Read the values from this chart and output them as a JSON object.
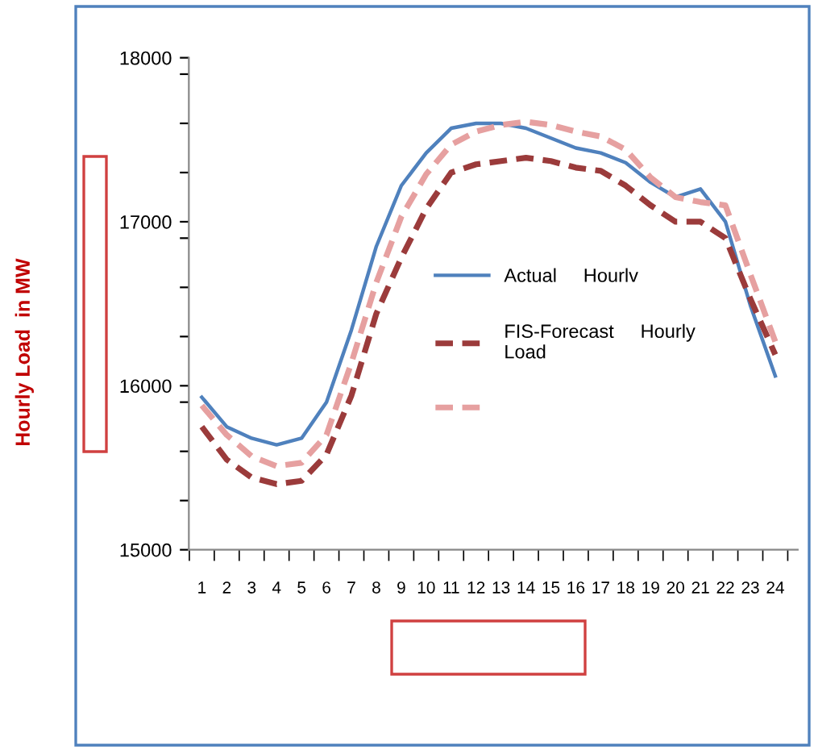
{
  "chart_data": {
    "type": "line",
    "ylabel": "Hourly Load  in MW",
    "categories": [
      "1",
      "2",
      "3",
      "4",
      "5",
      "6",
      "7",
      "8",
      "9",
      "10",
      "11",
      "12",
      "13",
      "14",
      "15",
      "16",
      "17",
      "18",
      "19",
      "20",
      "21",
      "22",
      "23",
      "24"
    ],
    "series": [
      {
        "name": "Actual     Hourlv",
        "color": "#4f81bd",
        "line_style": "solid",
        "values": [
          15930,
          15750,
          15680,
          15640,
          15680,
          15900,
          16340,
          16850,
          17220,
          17420,
          17570,
          17600,
          17600,
          17570,
          17510,
          17450,
          17420,
          17360,
          17240,
          17150,
          17200,
          17000,
          16490,
          16060
        ]
      },
      {
        "name": "FIS-Forecast     Hourly\nLoad",
        "color": "#9b3b3b",
        "line_style": "dashed",
        "values": [
          15750,
          15550,
          15440,
          15400,
          15420,
          15580,
          15940,
          16440,
          16780,
          17080,
          17300,
          17350,
          17370,
          17390,
          17370,
          17330,
          17310,
          17220,
          17100,
          17000,
          17000,
          16900,
          16530,
          16190
        ]
      },
      {
        "color": "#e6a0a0",
        "line_style": "dashed",
        "values": [
          15880,
          15700,
          15570,
          15510,
          15530,
          15700,
          16140,
          16630,
          17030,
          17290,
          17470,
          17550,
          17590,
          17610,
          17590,
          17550,
          17520,
          17440,
          17270,
          17150,
          17120,
          17100,
          16680,
          16270
        ]
      }
    ],
    "ylim": [
      15000,
      18000
    ],
    "yticks": [
      15000,
      {
        "value": 15300,
        "label": null
      },
      {
        "value": 15600,
        "label": null
      },
      {
        "value": 15900,
        "label": null
      },
      16000,
      {
        "value": 16300,
        "label": null
      },
      {
        "value": 16600,
        "label": null
      },
      {
        "value": 16900,
        "label": null
      },
      17000,
      {
        "value": 17300,
        "label": null
      },
      {
        "value": 17600,
        "label": null
      },
      {
        "value": 17900,
        "label": null
      },
      18000
    ],
    "grid": false,
    "legend": "right",
    "marker": "none"
  }
}
